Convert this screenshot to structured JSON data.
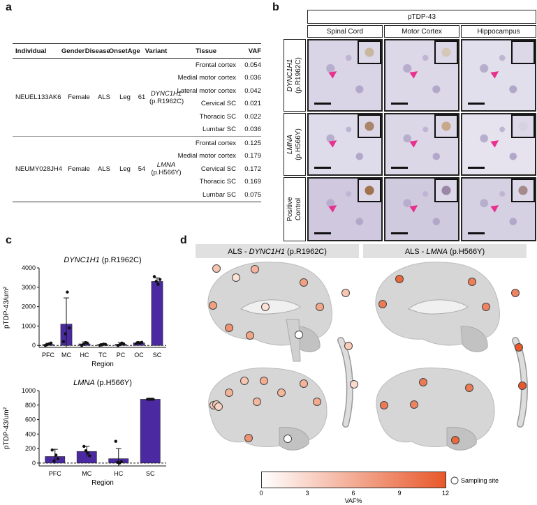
{
  "panels": {
    "a": "a",
    "b": "b",
    "c": "c",
    "d": "d"
  },
  "table": {
    "headers": [
      "Individual",
      "Gender",
      "Disease",
      "Onset",
      "Age",
      "Variant",
      "Tissue",
      "VAF"
    ],
    "groups": [
      {
        "individual": "NEUEL133AK6",
        "gender": "Female",
        "disease": "ALS",
        "onset": "Leg",
        "age": "61",
        "gene": "DYNC1H1",
        "protein": "(p.R1962C)",
        "rows": [
          {
            "tissue": "Frontal cortex",
            "vaf": "0.054"
          },
          {
            "tissue": "Medial motor cortex",
            "vaf": "0.036"
          },
          {
            "tissue": "Lateral motor cortex",
            "vaf": "0.042"
          },
          {
            "tissue": "Cervical SC",
            "vaf": "0.021"
          },
          {
            "tissue": "Thoracic SC",
            "vaf": "0.022"
          },
          {
            "tissue": "Lumbar SC",
            "vaf": "0.036"
          }
        ]
      },
      {
        "individual": "NEUMY028JH4",
        "gender": "Female",
        "disease": "ALS",
        "onset": "Leg",
        "age": "54",
        "gene": "LMNA",
        "protein": "(p.H566Y)",
        "rows": [
          {
            "tissue": "Frontal cortex",
            "vaf": "0.125"
          },
          {
            "tissue": "Medial motor cortex",
            "vaf": "0.179"
          },
          {
            "tissue": "Cervical SC",
            "vaf": "0.172"
          },
          {
            "tissue": "Thoracic SC",
            "vaf": "0.169"
          },
          {
            "tissue": "Lumbar SC",
            "vaf": "0.075"
          }
        ]
      }
    ]
  },
  "micro": {
    "title": "pTDP-43",
    "columns": [
      "Spinal Cord",
      "Motor Cortex",
      "Hippocampus"
    ],
    "rows": [
      {
        "gene": "DYNC1H1",
        "protein": "(p.R1962C)"
      },
      {
        "gene": "LMNA",
        "protein": "(p.H566Y)"
      },
      {
        "gene": "Positive",
        "protein": "Control"
      }
    ]
  },
  "chart_data": [
    {
      "type": "bar",
      "gene": "DYNC1H1",
      "protein": " (p.R1962C)",
      "ylabel": "pTDP-43/um²",
      "xlabel": "Region",
      "categories": [
        "PFC",
        "MC",
        "HC",
        "TC",
        "PC",
        "OC",
        "SC"
      ],
      "values": [
        50,
        1100,
        80,
        40,
        60,
        130,
        3300
      ],
      "errors": [
        60,
        1350,
        100,
        50,
        90,
        60,
        180
      ],
      "points": [
        [
          0,
          40,
          80,
          120
        ],
        [
          200,
          600,
          2750,
          900
        ],
        [
          0,
          60,
          150,
          120
        ],
        [
          10,
          30,
          70,
          50
        ],
        [
          0,
          40,
          120,
          80
        ],
        [
          90,
          150,
          120,
          160
        ],
        [
          3550,
          3300,
          3150,
          3400
        ]
      ],
      "yticks": [
        0,
        1000,
        2000,
        3000,
        4000
      ],
      "ylim": [
        -100,
        4000
      ],
      "color": "#4b2aa1"
    },
    {
      "type": "bar",
      "gene": "LMNA",
      "protein": " (p.H566Y)",
      "ylabel": "pTDP-43/um²",
      "xlabel": "Region",
      "categories": [
        "PFC",
        "MC",
        "HC",
        "SC"
      ],
      "values": [
        90,
        160,
        60,
        880
      ],
      "errors": [
        100,
        70,
        140,
        15
      ],
      "points": [
        [
          180,
          30,
          110,
          60
        ],
        [
          230,
          170,
          140,
          100
        ],
        [
          300,
          10,
          0,
          20
        ],
        [
          880,
          880,
          880,
          880
        ]
      ],
      "yticks": [
        0,
        200,
        400,
        600,
        800,
        1000
      ],
      "ylim": [
        -40,
        1000
      ],
      "color": "#4b2aa1"
    }
  ],
  "brain": {
    "left_title_prefix": "ALS - ",
    "left_gene": "DYNC1H1",
    "left_protein": " (p.R1962C)",
    "right_title_prefix": "ALS - ",
    "right_gene": "LMNA",
    "right_protein": " (p.H566Y)",
    "vaf_colorbar": {
      "ticks": [
        "0",
        "3",
        "6",
        "9",
        "12"
      ],
      "label": "VAF%",
      "legend": "Sampling site",
      "color_low": "#ffffff",
      "color_high": "#e8582a"
    }
  }
}
